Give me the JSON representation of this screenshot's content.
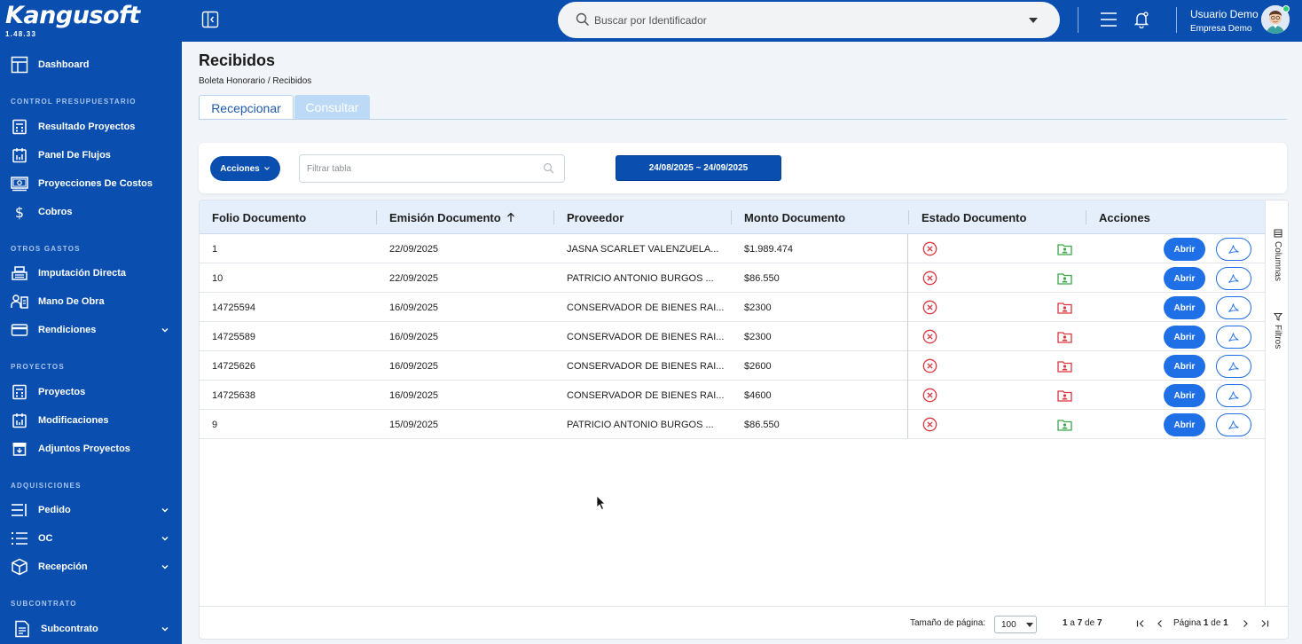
{
  "app": {
    "brand": "Kangusoft",
    "version": "1.48.33"
  },
  "sidebar": {
    "dashboard": "Dashboard",
    "sections": {
      "control": "CONTROL PRESUPUESTARIO",
      "otros": "OTROS GASTOS",
      "proyectos": "PROYECTOS",
      "adquisiciones": "ADQUISICIONES",
      "subcontrato": "SUBCONTRATO"
    },
    "items": {
      "resultado_proyectos": "Resultado Proyectos",
      "panel_flujos": "Panel De Flujos",
      "proyecciones_costos": "Proyecciones De Costos",
      "cobros": "Cobros",
      "imputacion_directa": "Imputación Directa",
      "mano_obra": "Mano De Obra",
      "rendiciones": "Rendiciones",
      "proyectos": "Proyectos",
      "modificaciones": "Modificaciones",
      "adjuntos_proyectos": "Adjuntos Proyectos",
      "pedido": "Pedido",
      "oc": "OC",
      "recepcion": "Recepción",
      "subcontrato": "Subcontrato"
    }
  },
  "topbar": {
    "search_placeholder": "Buscar por Identificador",
    "user_name": "Usuario Demo",
    "user_company": "Empresa Demo"
  },
  "page": {
    "title": "Recibidos",
    "breadcrumb": "Boleta Honorario / Recibidos",
    "tabs": [
      "Recepcionar",
      "Consultar"
    ]
  },
  "toolbar": {
    "acciones_label": "Acciones",
    "filter_placeholder": "Filtrar tabla",
    "date_range": "24/08/2025 ~ 24/09/2025"
  },
  "grid": {
    "columns": [
      "Folio Documento",
      "Emisión Documento",
      "Proveedor",
      "Monto Documento",
      "Estado Documento",
      "Acciones"
    ],
    "rows": [
      {
        "folio": "1",
        "emision": "22/09/2025",
        "proveedor": "JASNA SCARLET VALENZUELA...",
        "monto": "$1.989.474",
        "folder": "green"
      },
      {
        "folio": "10",
        "emision": "22/09/2025",
        "proveedor": "PATRICIO ANTONIO BURGOS ...",
        "monto": "$86.550",
        "folder": "green"
      },
      {
        "folio": "14725594",
        "emision": "16/09/2025",
        "proveedor": "CONSERVADOR DE BIENES RAI...",
        "monto": "$2300",
        "folder": "red"
      },
      {
        "folio": "14725589",
        "emision": "16/09/2025",
        "proveedor": "CONSERVADOR DE BIENES RAI...",
        "monto": "$2300",
        "folder": "red"
      },
      {
        "folio": "14725626",
        "emision": "16/09/2025",
        "proveedor": "CONSERVADOR DE BIENES RAI...",
        "monto": "$2600",
        "folder": "red"
      },
      {
        "folio": "14725638",
        "emision": "16/09/2025",
        "proveedor": "CONSERVADOR DE BIENES RAI...",
        "monto": "$4600",
        "folder": "red"
      },
      {
        "folio": "9",
        "emision": "15/09/2025",
        "proveedor": "PATRICIO ANTONIO BURGOS ...",
        "monto": "$86.550",
        "folder": "green"
      }
    ],
    "abrir_label": "Abrir",
    "side_tabs": {
      "columnas": "Columnas",
      "filtros": "Filtros"
    },
    "footer": {
      "page_size_label": "Tamaño de página:",
      "page_size": "100",
      "range_from": "1",
      "range_a": "a",
      "range_to": "7",
      "range_de": "de",
      "range_total": "7",
      "pagina": "Página",
      "page_current": "1",
      "page_de": "de",
      "page_total": "1"
    }
  },
  "colors": {
    "primary": "#0a4fb0",
    "button_blue": "#1f6fe6",
    "status_red": "#d9363e",
    "folder_green": "#3aa64a",
    "folder_red": "#d9363e"
  }
}
